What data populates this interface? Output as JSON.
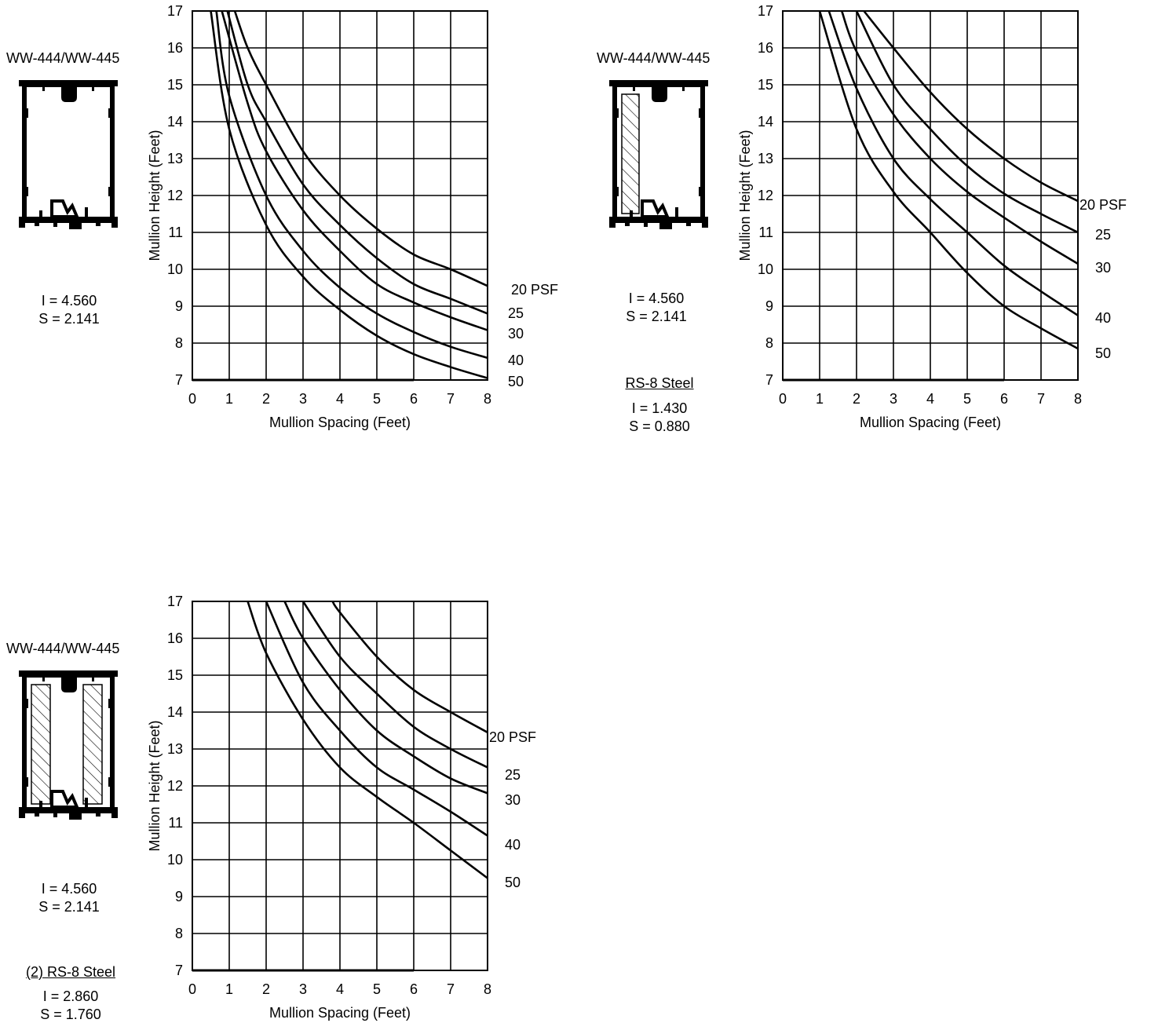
{
  "panels": [
    {
      "profile_title": "WW-444/WW-445",
      "aluminum": {
        "I": "I = 4.560",
        "S": "S = 2.141"
      },
      "steel": null,
      "reinforcement": "none"
    },
    {
      "profile_title": "WW-444/WW-445",
      "aluminum": {
        "I": "I = 4.560",
        "S": "S = 2.141"
      },
      "steel": {
        "title": "RS-8 Steel",
        "I": "I = 1.430",
        "S": "S = 0.880"
      },
      "reinforcement": "single"
    },
    {
      "profile_title": "WW-444/WW-445",
      "aluminum": {
        "I": "I = 4.560",
        "S": "S = 2.141"
      },
      "steel": {
        "title": "(2) RS-8 Steel",
        "I": "I = 2.860",
        "S": "S = 1.760"
      },
      "reinforcement": "double"
    }
  ],
  "chart_data": [
    {
      "type": "line",
      "xlabel": "Mullion Spacing (Feet)",
      "ylabel": "Mullion Height (Feet)",
      "xlim": [
        0,
        8
      ],
      "ylim": [
        7,
        17
      ],
      "x_ticks": [
        "0",
        "1",
        "2",
        "3",
        "4",
        "5",
        "6",
        "7",
        "8"
      ],
      "y_ticks": [
        "7",
        "8",
        "9",
        "10",
        "11",
        "12",
        "13",
        "14",
        "15",
        "16",
        "17"
      ],
      "grid": true,
      "series": [
        {
          "name": "20 PSF",
          "points": [
            [
              1.15,
              17
            ],
            [
              1.5,
              16.0
            ],
            [
              2,
              15.0
            ],
            [
              3,
              13.2
            ],
            [
              4,
              12.0
            ],
            [
              5,
              11.1
            ],
            [
              6,
              10.4
            ],
            [
              7,
              10.0
            ],
            [
              8,
              9.55
            ]
          ]
        },
        {
          "name": "25",
          "points": [
            [
              0.95,
              17
            ],
            [
              1.5,
              15.0
            ],
            [
              2,
              14.0
            ],
            [
              3,
              12.3
            ],
            [
              4,
              11.2
            ],
            [
              5,
              10.3
            ],
            [
              6,
              9.6
            ],
            [
              7,
              9.2
            ],
            [
              8,
              8.8
            ]
          ]
        },
        {
          "name": "30",
          "points": [
            [
              0.8,
              17
            ],
            [
              1.5,
              14.5
            ],
            [
              2,
              13.2
            ],
            [
              3,
              11.6
            ],
            [
              4,
              10.5
            ],
            [
              5,
              9.6
            ],
            [
              6,
              9.1
            ],
            [
              7,
              8.7
            ],
            [
              8,
              8.35
            ]
          ]
        },
        {
          "name": "40",
          "points": [
            [
              0.65,
              17
            ],
            [
              1,
              14.7
            ],
            [
              2,
              12.0
            ],
            [
              3,
              10.5
            ],
            [
              4,
              9.5
            ],
            [
              5,
              8.8
            ],
            [
              6,
              8.3
            ],
            [
              7,
              7.9
            ],
            [
              8,
              7.6
            ]
          ]
        },
        {
          "name": "50",
          "points": [
            [
              0.5,
              17
            ],
            [
              1,
              13.8
            ],
            [
              2,
              11.2
            ],
            [
              3,
              9.8
            ],
            [
              4,
              8.9
            ],
            [
              5,
              8.2
            ],
            [
              6,
              7.7
            ],
            [
              7,
              7.35
            ],
            [
              8,
              7.05
            ]
          ]
        }
      ]
    },
    {
      "type": "line",
      "xlabel": "Mullion Spacing (Feet)",
      "ylabel": "Mullion Height (Feet)",
      "xlim": [
        0,
        8
      ],
      "ylim": [
        7,
        17
      ],
      "x_ticks": [
        "0",
        "1",
        "2",
        "3",
        "4",
        "5",
        "6",
        "7",
        "8"
      ],
      "y_ticks": [
        "7",
        "8",
        "9",
        "10",
        "11",
        "12",
        "13",
        "14",
        "15",
        "16",
        "17"
      ],
      "grid": true,
      "series": [
        {
          "name": "20 PSF",
          "points": [
            [
              2.2,
              17
            ],
            [
              3,
              16.0
            ],
            [
              4,
              14.8
            ],
            [
              5,
              13.8
            ],
            [
              6,
              13.0
            ],
            [
              7,
              12.35
            ],
            [
              8,
              11.85
            ]
          ]
        },
        {
          "name": "25",
          "points": [
            [
              2,
              17
            ],
            [
              3,
              15.0
            ],
            [
              4,
              13.8
            ],
            [
              5,
              12.8
            ],
            [
              6,
              12.05
            ],
            [
              7,
              11.5
            ],
            [
              8,
              11.0
            ]
          ]
        },
        {
          "name": "30",
          "points": [
            [
              1.6,
              17
            ],
            [
              2,
              15.9
            ],
            [
              3,
              14.2
            ],
            [
              4,
              13.0
            ],
            [
              5,
              12.1
            ],
            [
              6,
              11.4
            ],
            [
              7,
              10.75
            ],
            [
              8,
              10.15
            ]
          ]
        },
        {
          "name": "40",
          "points": [
            [
              1.25,
              17
            ],
            [
              2,
              14.9
            ],
            [
              3,
              13.0
            ],
            [
              4,
              11.9
            ],
            [
              5,
              11.0
            ],
            [
              6,
              10.1
            ],
            [
              7,
              9.4
            ],
            [
              8,
              8.75
            ]
          ]
        },
        {
          "name": "50",
          "points": [
            [
              1,
              17
            ],
            [
              2,
              13.8
            ],
            [
              3,
              12.1
            ],
            [
              4,
              11.0
            ],
            [
              5,
              9.9
            ],
            [
              6,
              9.0
            ],
            [
              7,
              8.4
            ],
            [
              8,
              7.85
            ]
          ]
        }
      ]
    },
    {
      "type": "line",
      "xlabel": "Mullion Spacing (Feet)",
      "ylabel": "Mullion Height (Feet)",
      "xlim": [
        0,
        8
      ],
      "ylim": [
        7,
        17
      ],
      "x_ticks": [
        "0",
        "1",
        "2",
        "3",
        "4",
        "5",
        "6",
        "7",
        "8"
      ],
      "y_ticks": [
        "7",
        "8",
        "9",
        "10",
        "11",
        "12",
        "13",
        "14",
        "15",
        "16",
        "17"
      ],
      "grid": true,
      "series": [
        {
          "name": "20 PSF",
          "points": [
            [
              3.8,
              17
            ],
            [
              4,
              16.7
            ],
            [
              5,
              15.5
            ],
            [
              6,
              14.6
            ],
            [
              7,
              14.0
            ],
            [
              8,
              13.45
            ]
          ]
        },
        {
          "name": "25",
          "points": [
            [
              3,
              17
            ],
            [
              4,
              15.5
            ],
            [
              5,
              14.5
            ],
            [
              6,
              13.6
            ],
            [
              7,
              13.0
            ],
            [
              8,
              12.5
            ]
          ]
        },
        {
          "name": "30",
          "points": [
            [
              2.5,
              17
            ],
            [
              3,
              16.0
            ],
            [
              4,
              14.6
            ],
            [
              5,
              13.5
            ],
            [
              6,
              12.8
            ],
            [
              7,
              12.2
            ],
            [
              8,
              11.8
            ]
          ]
        },
        {
          "name": "40",
          "points": [
            [
              2,
              17
            ],
            [
              3,
              14.8
            ],
            [
              4,
              13.5
            ],
            [
              5,
              12.5
            ],
            [
              6,
              11.9
            ],
            [
              7,
              11.3
            ],
            [
              8,
              10.65
            ]
          ]
        },
        {
          "name": "50",
          "points": [
            [
              1.5,
              17
            ],
            [
              2,
              15.6
            ],
            [
              3,
              13.8
            ],
            [
              4,
              12.5
            ],
            [
              5,
              11.7
            ],
            [
              6,
              11.0
            ],
            [
              7,
              10.25
            ],
            [
              8,
              9.5
            ]
          ]
        }
      ]
    }
  ]
}
